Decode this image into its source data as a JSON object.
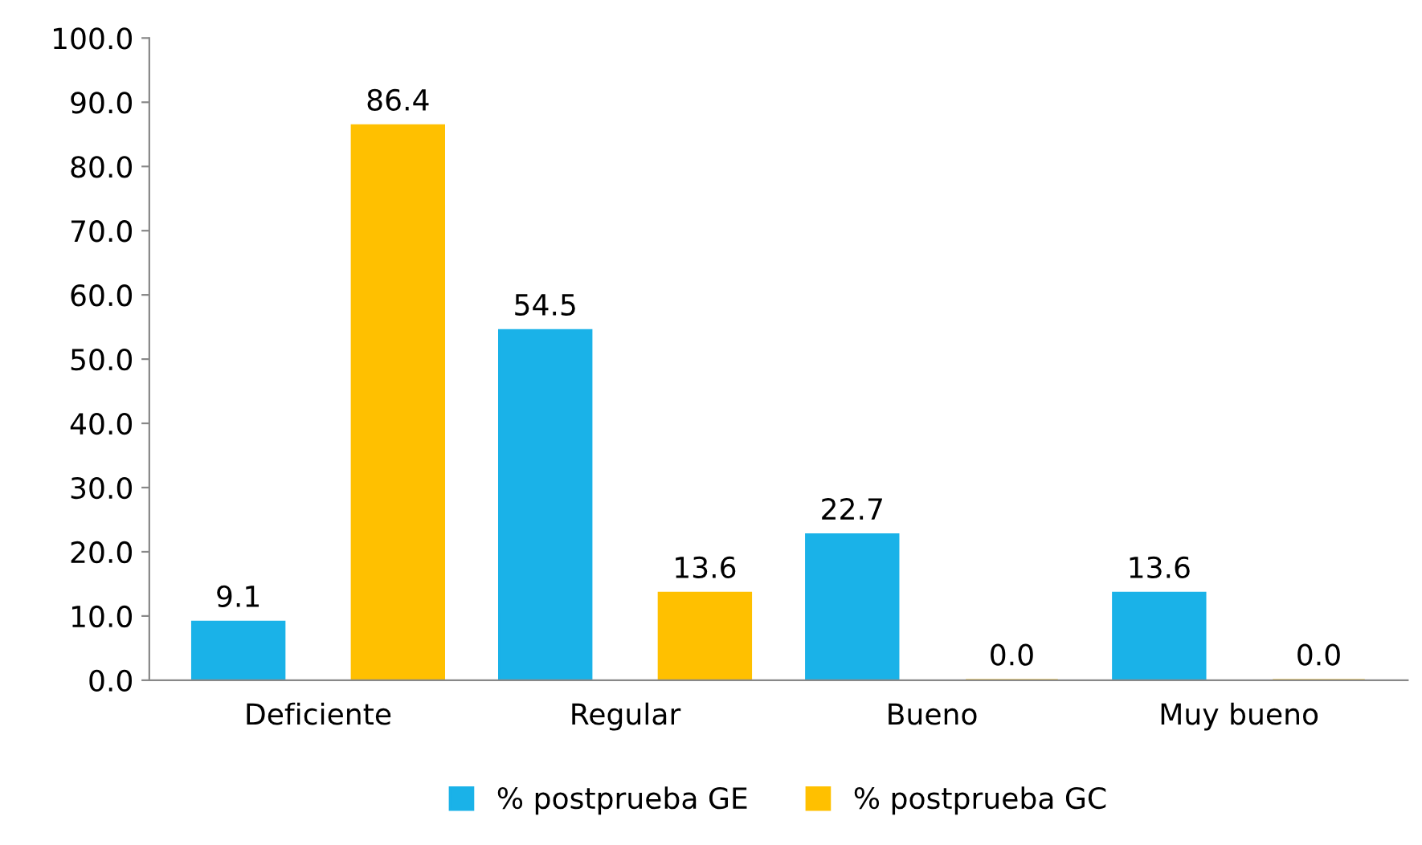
{
  "chart_data": {
    "type": "bar",
    "categories": [
      "Deficiente",
      "Regular",
      "Bueno",
      "Muy bueno"
    ],
    "series": [
      {
        "name": "% postprueba GE",
        "color": "#1ab2e8",
        "values": [
          9.1,
          54.5,
          22.7,
          13.6
        ],
        "value_labels": [
          "9.1",
          "54.5",
          "22.7",
          "13.6"
        ]
      },
      {
        "name": "% postprueba GC",
        "color": "#ffc000",
        "values": [
          86.4,
          13.6,
          0.0,
          0.0
        ],
        "value_labels": [
          "86.4",
          "13.6",
          "0.0",
          "0.0"
        ]
      }
    ],
    "ylim": [
      0,
      100
    ],
    "yticks": [
      {
        "value": 0,
        "label": "0.0"
      },
      {
        "value": 10,
        "label": "10.0"
      },
      {
        "value": 20,
        "label": "20.0"
      },
      {
        "value": 30,
        "label": "30.0"
      },
      {
        "value": 40,
        "label": "40.0"
      },
      {
        "value": 50,
        "label": "50.0"
      },
      {
        "value": 60,
        "label": "60.0"
      },
      {
        "value": 70,
        "label": "70.0"
      },
      {
        "value": 80,
        "label": "80.0"
      },
      {
        "value": 90,
        "label": "90.0"
      },
      {
        "value": 100,
        "label": "100.0"
      }
    ],
    "grid": false,
    "legend": "bottom"
  }
}
